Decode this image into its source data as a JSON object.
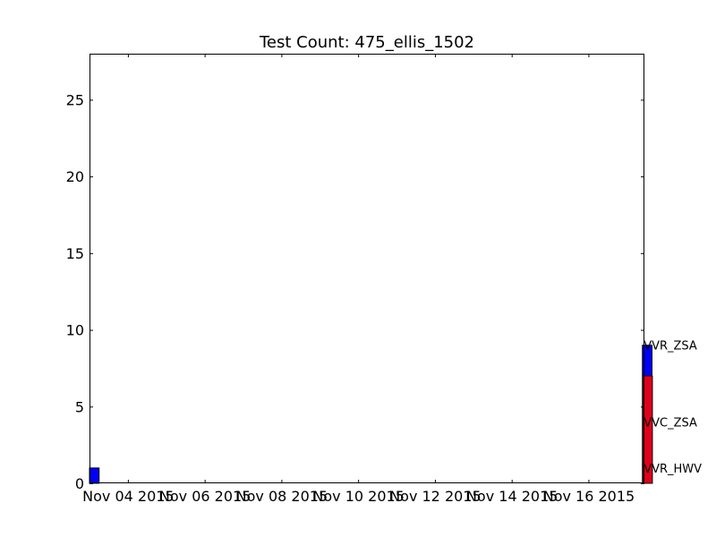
{
  "chart_data": {
    "type": "bar",
    "title": "Test Count: 475_ellis_1502",
    "xlabel": "",
    "ylabel": "",
    "ylim": [
      0,
      28
    ],
    "y_ticks": [
      0,
      5,
      10,
      15,
      20,
      25
    ],
    "x_axis": {
      "type": "date",
      "start": "2015-11-03",
      "end": "2015-11-17T11:00:00",
      "ticks": [
        {
          "date": "2015-11-04",
          "label": "Nov 04 2015"
        },
        {
          "date": "2015-11-06",
          "label": "Nov 06 2015"
        },
        {
          "date": "2015-11-08",
          "label": "Nov 08 2015"
        },
        {
          "date": "2015-11-10",
          "label": "Nov 10 2015"
        },
        {
          "date": "2015-11-12",
          "label": "Nov 12 2015"
        },
        {
          "date": "2015-11-14",
          "label": "Nov 14 2015"
        },
        {
          "date": "2015-11-16",
          "label": "Nov 16 2015"
        }
      ]
    },
    "bars": [
      {
        "date": "2015-11-03",
        "value": 1,
        "color": "#0000ff"
      },
      {
        "date": "2015-11-17T09:45:00",
        "value": 9,
        "color": "#0000ff"
      },
      {
        "date": "2015-11-17T10:00:00",
        "value": 7,
        "color": "#e0001b"
      }
    ],
    "annotations": [
      {
        "text": "VVR_ZSA",
        "date": "2015-11-17T10:00:00",
        "value": 9
      },
      {
        "text": "VVC_ZSA",
        "date": "2015-11-17T10:00:00",
        "value": 4
      },
      {
        "text": "VVR_HWV",
        "date": "2015-11-17T10:00:00",
        "value": 1
      }
    ],
    "grid": false
  }
}
